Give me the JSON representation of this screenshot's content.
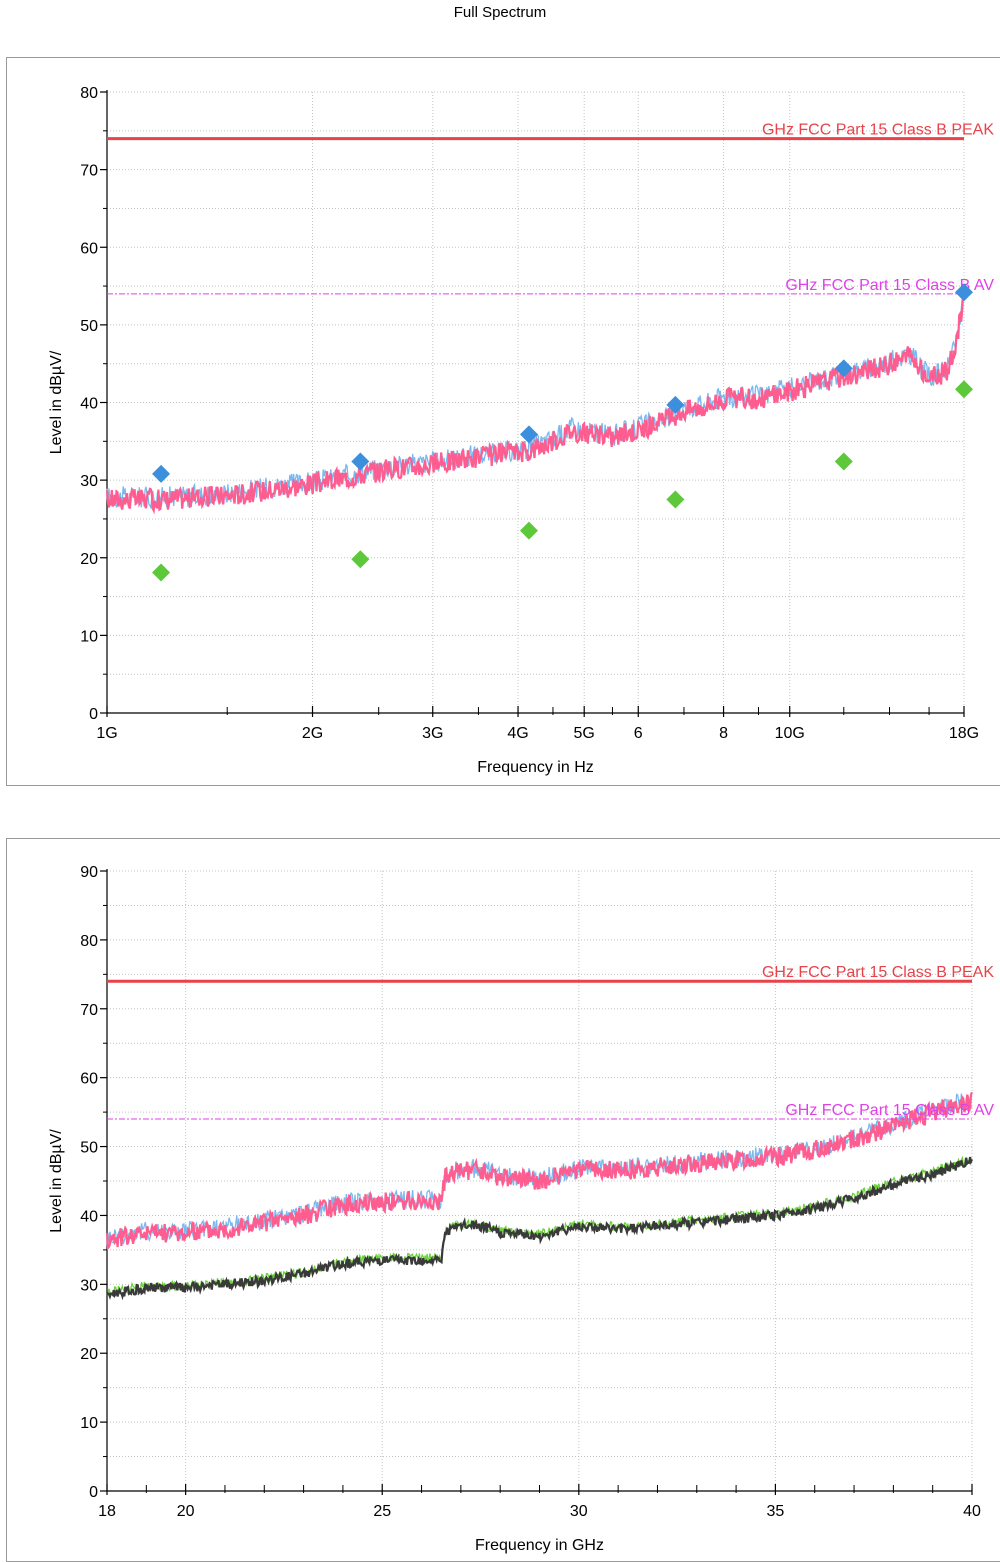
{
  "page": {
    "title": "Full Spectrum"
  },
  "colors": {
    "peak_limit": "#e8424a",
    "av_limit": "#e040e8",
    "trace_peak": "#ff5c8f",
    "trace_peak_under": "#7ab8ee",
    "trace_avg": "#3a3a3a",
    "trace_avg_under": "#6bd23a",
    "marker_peak": "#3c8fdc",
    "marker_avg": "#5cc83a",
    "grid": "#c4c4c4"
  },
  "chart_data": [
    {
      "type": "line",
      "xscale": "log",
      "xlabel": "Frequency in Hz",
      "ylabel": "Level in dBµV/",
      "xlim": [
        1,
        18
      ],
      "ylim": [
        0,
        80
      ],
      "xticks": [
        {
          "value": 1,
          "label": "1G"
        },
        {
          "value": 2,
          "label": "2G"
        },
        {
          "value": 3,
          "label": "3G"
        },
        {
          "value": 4,
          "label": "4G"
        },
        {
          "value": 5,
          "label": "5G"
        },
        {
          "value": 6,
          "label": "6"
        },
        {
          "value": 8,
          "label": "8"
        },
        {
          "value": 10,
          "label": "10G"
        },
        {
          "value": 18,
          "label": "18G"
        }
      ],
      "yticks": [
        0,
        10,
        20,
        30,
        40,
        50,
        60,
        70,
        80
      ],
      "limit_lines": [
        {
          "name": "GHz FCC Part 15 Class B PEAK",
          "value": 74,
          "style": "solid"
        },
        {
          "name": "GHz FCC Part 15 Class B AV",
          "value": 54,
          "style": "dashdot"
        }
      ],
      "series": [
        {
          "role": "peak-trace",
          "x": [
            1.0,
            1.2,
            1.5,
            1.8,
            2.0,
            2.3,
            2.6,
            3.0,
            3.5,
            4.0,
            4.2,
            4.5,
            4.8,
            5.0,
            5.5,
            6.0,
            6.5,
            7.0,
            7.5,
            8.0,
            9.0,
            10.0,
            11.0,
            12.0,
            13.0,
            14.0,
            15.0,
            16.0,
            17.0,
            17.5,
            18.0
          ],
          "values": [
            27.5,
            27.5,
            28.0,
            29.0,
            29.5,
            30.5,
            31.5,
            32.0,
            33.0,
            33.5,
            34.0,
            35.0,
            36.5,
            36.0,
            35.5,
            36.5,
            37.5,
            39.0,
            39.5,
            40.5,
            40.5,
            41.5,
            42.5,
            43.5,
            44.0,
            45.0,
            46.0,
            43.0,
            44.0,
            47.0,
            54.0
          ]
        },
        {
          "role": "peak-markers",
          "x": [
            1.2,
            2.35,
            4.15,
            6.8,
            12.0,
            18.0
          ],
          "values": [
            30.8,
            32.4,
            35.9,
            39.7,
            44.4,
            54.2
          ]
        },
        {
          "role": "average-markers",
          "x": [
            1.2,
            2.35,
            4.15,
            6.8,
            12.0,
            18.0
          ],
          "values": [
            18.1,
            19.8,
            23.5,
            27.5,
            32.4,
            41.7
          ]
        }
      ]
    },
    {
      "type": "line",
      "xscale": "linear",
      "xlabel": "Frequency in GHz",
      "ylabel": "Level in dBµV/",
      "xlim": [
        18,
        40
      ],
      "ylim": [
        0,
        90
      ],
      "xticks": [
        {
          "value": 18,
          "label": "18"
        },
        {
          "value": 20,
          "label": "20"
        },
        {
          "value": 25,
          "label": "25"
        },
        {
          "value": 30,
          "label": "30"
        },
        {
          "value": 35,
          "label": "35"
        },
        {
          "value": 40,
          "label": "40"
        }
      ],
      "yticks": [
        0,
        10,
        20,
        30,
        40,
        50,
        60,
        70,
        80,
        90
      ],
      "limit_lines": [
        {
          "name": "GHz FCC Part 15 Class B PEAK",
          "value": 74,
          "style": "solid"
        },
        {
          "name": "GHz FCC Part 15 Class B AV",
          "value": 54,
          "style": "dashdot"
        }
      ],
      "series": [
        {
          "role": "peak-trace",
          "x": [
            18,
            19,
            20,
            21,
            22,
            23,
            24,
            25,
            26,
            26.5,
            26.6,
            27,
            27.5,
            28,
            29,
            30,
            31,
            32,
            33,
            34,
            35,
            36,
            37,
            38,
            39,
            40
          ],
          "values": [
            36.5,
            37.5,
            37.5,
            38.0,
            39.0,
            40.0,
            41.5,
            42.0,
            42.0,
            42.0,
            45.5,
            46.5,
            46.5,
            45.5,
            45.0,
            46.5,
            46.5,
            47.0,
            47.5,
            48.0,
            48.5,
            49.5,
            51.0,
            53.0,
            55.0,
            56.5
          ]
        },
        {
          "role": "average-trace",
          "x": [
            18,
            19,
            20,
            21,
            22,
            23,
            24,
            25,
            26,
            26.5,
            26.6,
            27,
            27.5,
            28,
            29,
            30,
            31,
            32,
            33,
            34,
            35,
            36,
            37,
            38,
            39,
            40
          ],
          "values": [
            28.5,
            29.5,
            29.5,
            30.0,
            30.5,
            31.5,
            33.0,
            33.5,
            33.5,
            33.5,
            37.5,
            38.5,
            38.5,
            37.5,
            37.0,
            38.5,
            38.0,
            38.5,
            39.0,
            39.5,
            40.0,
            41.0,
            42.5,
            44.5,
            46.0,
            48.0
          ]
        }
      ]
    }
  ]
}
